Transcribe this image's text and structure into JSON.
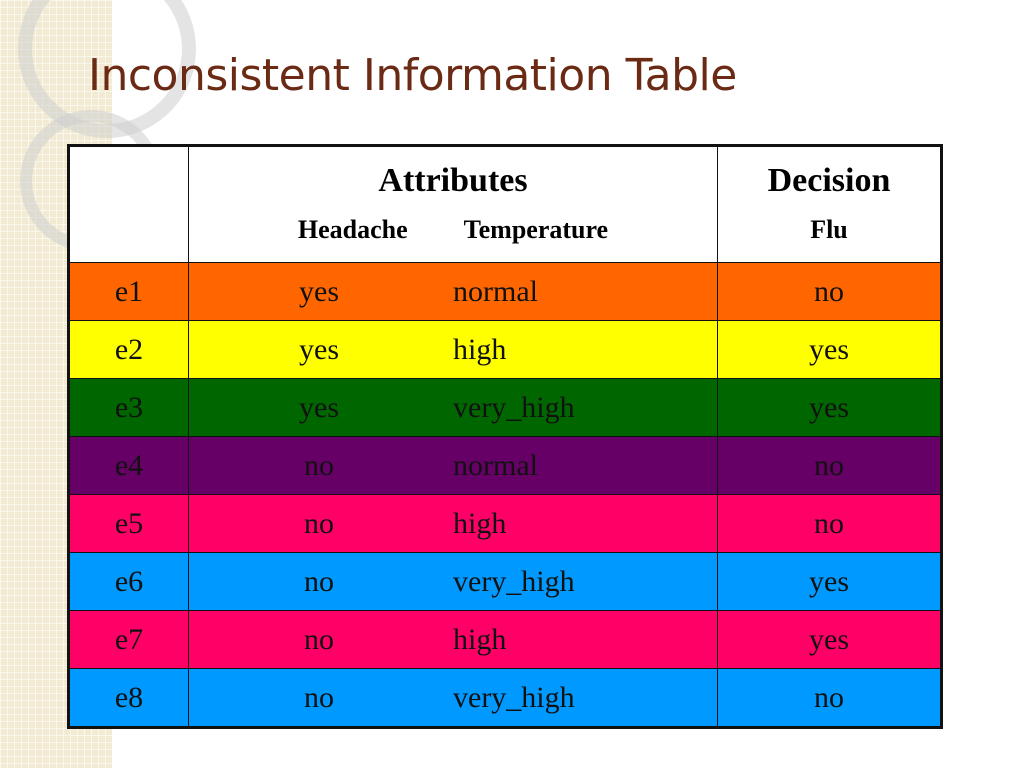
{
  "slide": {
    "title": "Inconsistent Information Table"
  },
  "table": {
    "header": {
      "id_label": "",
      "attributes_label": "Attributes",
      "attribute_columns": [
        "Headache",
        "Temperature"
      ],
      "decision_label": "Decision",
      "decision_column": "Flu"
    },
    "rows": [
      {
        "id": "e1",
        "headache": "yes",
        "temperature": "normal",
        "flu": "no",
        "bg": "#ff6600",
        "fg": "#111111"
      },
      {
        "id": "e2",
        "headache": "yes",
        "temperature": "high",
        "flu": "yes",
        "bg": "#ffff00",
        "fg": "#111111"
      },
      {
        "id": "e3",
        "headache": "yes",
        "temperature": "very_high",
        "flu": "yes",
        "bg": "#006600",
        "fg": "#111111"
      },
      {
        "id": "e4",
        "headache": "no",
        "temperature": "normal",
        "flu": "no",
        "bg": "#660066",
        "fg": "#111111"
      },
      {
        "id": "e5",
        "headache": "no",
        "temperature": "high",
        "flu": "no",
        "bg": "#ff0066",
        "fg": "#111111"
      },
      {
        "id": "e6",
        "headache": "no",
        "temperature": "very_high",
        "flu": "yes",
        "bg": "#0099ff",
        "fg": "#111111"
      },
      {
        "id": "e7",
        "headache": "no",
        "temperature": "high",
        "flu": "yes",
        "bg": "#ff0066",
        "fg": "#111111"
      },
      {
        "id": "e8",
        "headache": "no",
        "temperature": "very_high",
        "flu": "no",
        "bg": "#0099ff",
        "fg": "#111111"
      }
    ]
  }
}
